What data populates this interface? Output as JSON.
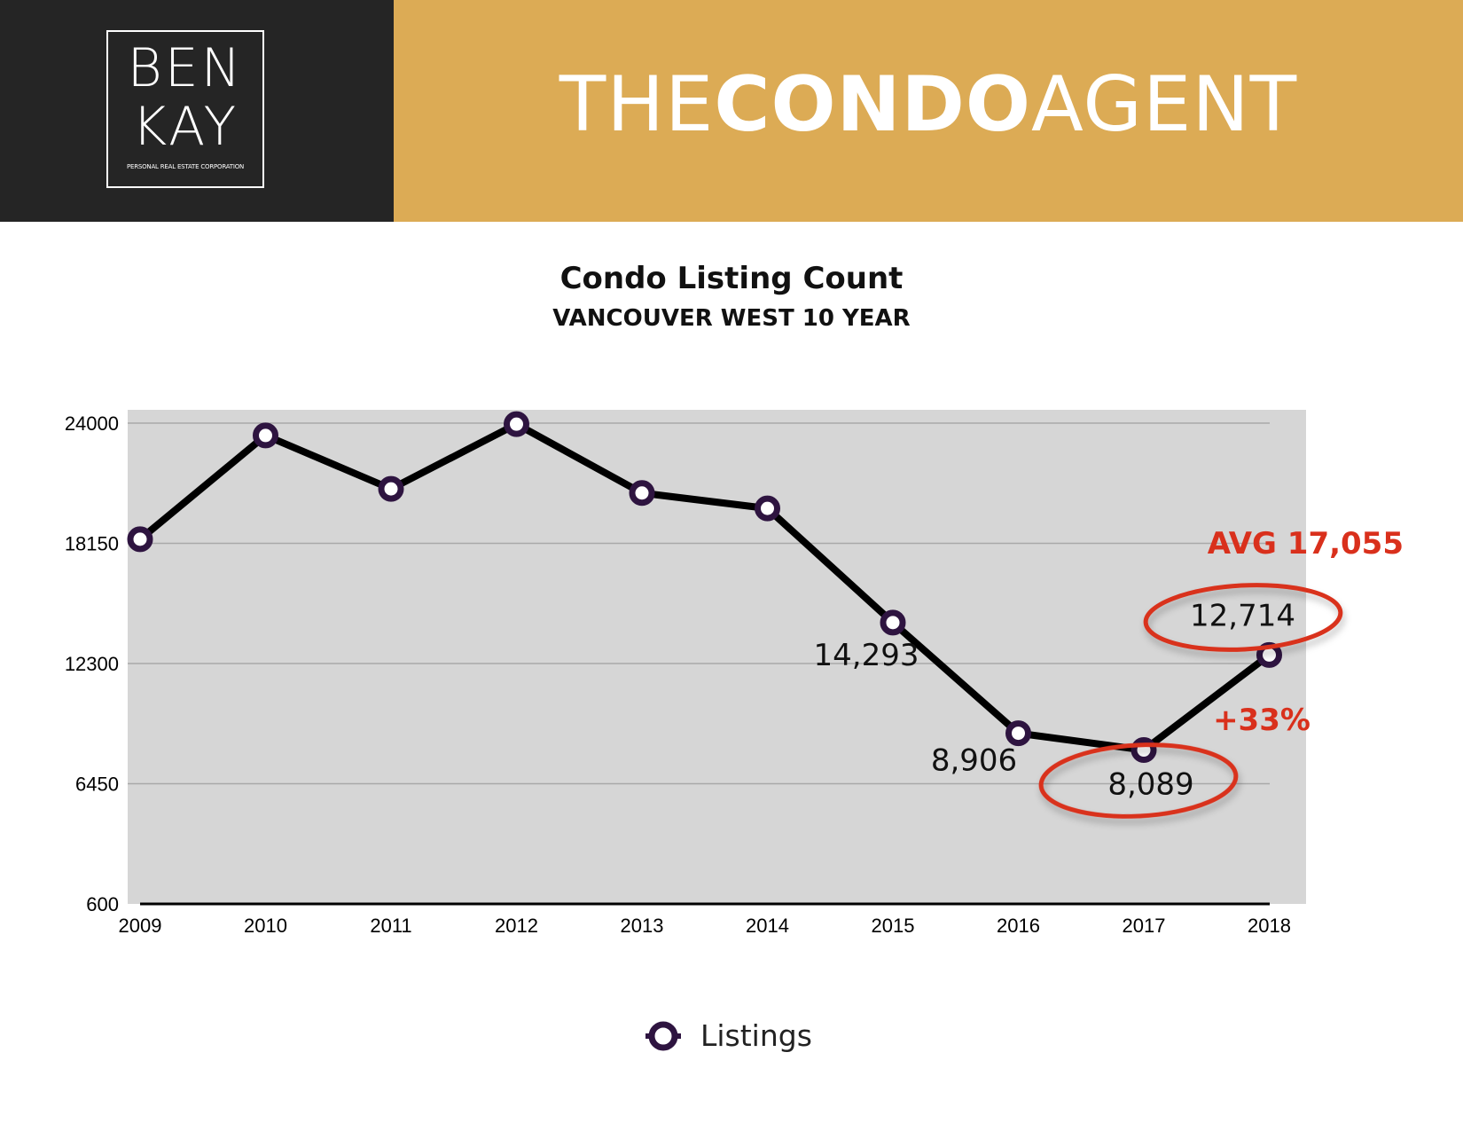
{
  "header": {
    "logo_line1": "BEN",
    "logo_line2": "KAY",
    "logo_sub": "PERSONAL REAL ESTATE CORPORATION",
    "brand_the": "THE",
    "brand_condo": "CONDO",
    "brand_agent": "AGENT"
  },
  "colors": {
    "header_dark": "#252525",
    "header_gold": "#dcab55",
    "plot_bg": "#d6d6d6",
    "line": "#000000",
    "marker": "#2e1440",
    "annotation_red": "#d9301c"
  },
  "chart_data": {
    "type": "line",
    "title": "Condo Listing Count",
    "subtitle": "VANCOUVER WEST 10 YEAR",
    "x": [
      "2009",
      "2010",
      "2011",
      "2012",
      "2013",
      "2014",
      "2015",
      "2016",
      "2017",
      "2018"
    ],
    "yticks": [
      "600",
      "6450",
      "12300",
      "18150",
      "24000"
    ],
    "ylim": [
      600,
      24000
    ],
    "grid": true,
    "legend_position": "bottom",
    "series": [
      {
        "name": "Listings",
        "values": [
          18350,
          23400,
          20800,
          23950,
          20600,
          19850,
          14293,
          8906,
          8089,
          12714
        ]
      }
    ],
    "data_labels": [
      {
        "index": 6,
        "text": "14,293"
      },
      {
        "index": 7,
        "text": "8,906"
      },
      {
        "index": 8,
        "text": "8,089"
      },
      {
        "index": 9,
        "text": "12,714"
      }
    ],
    "annotations": {
      "avg_value": 17055,
      "avg_label": "AVG 17,055",
      "change_label": "+33%"
    }
  }
}
